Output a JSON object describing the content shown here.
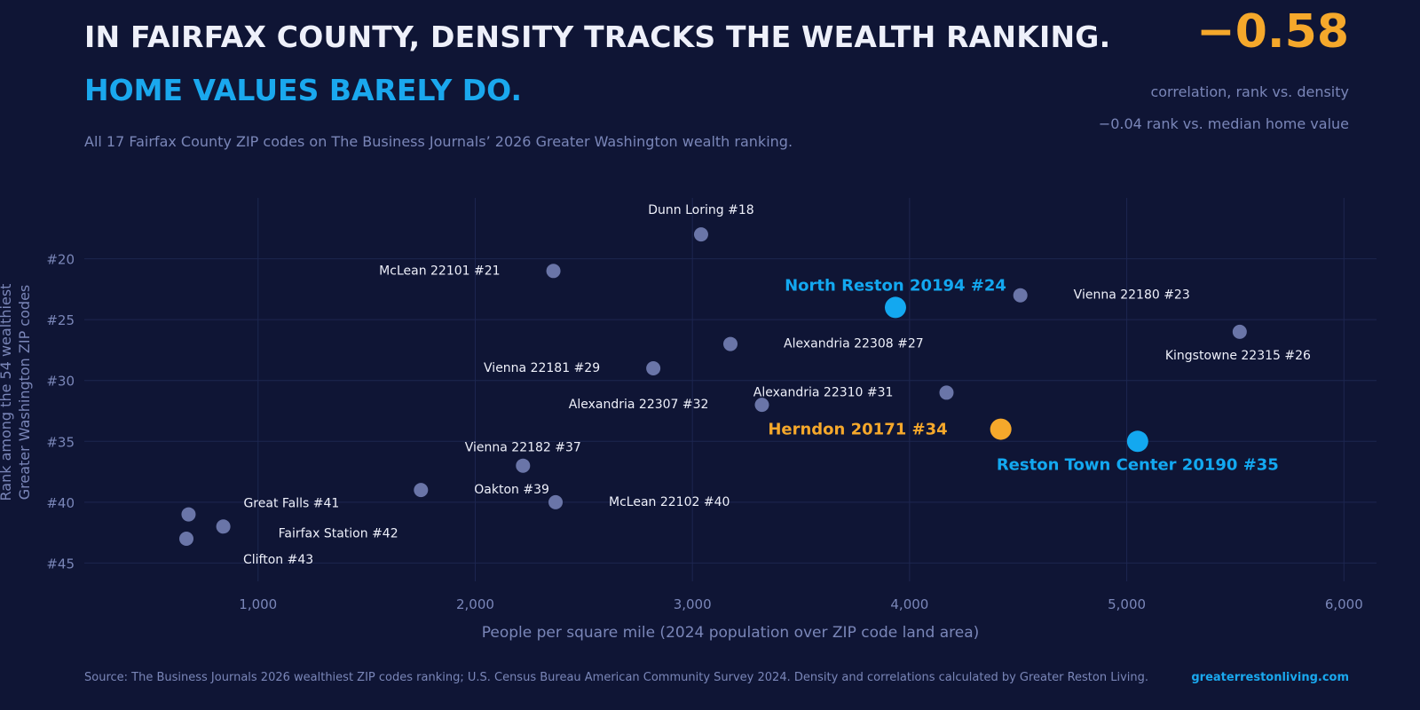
{
  "header": {
    "title_line1": "IN FAIRFAX COUNTY, DENSITY TRACKS THE WEALTH RANKING.",
    "title_line2": "HOME VALUES BARELY DO.",
    "subtitle": "All 17 Fairfax County ZIP codes on The Business Journals’ 2026 Greater Washington wealth ranking."
  },
  "stat": {
    "value": "−0.58",
    "label": "correlation, rank vs. density",
    "secondary": "−0.04  rank vs. median home value"
  },
  "chart_data": {
    "type": "scatter",
    "xlabel": "People per square mile  (2024 population over ZIP code land area)",
    "ylabel_line1": "Rank among the 54 wealthiest",
    "ylabel_line2": "Greater Washington ZIP codes",
    "xlim": [
      200,
      6150
    ],
    "ylim": [
      46.5,
      15
    ],
    "x_ticks": [
      1000,
      2000,
      3000,
      4000,
      5000,
      6000
    ],
    "x_tick_labels": [
      "1,000",
      "2,000",
      "3,000",
      "4,000",
      "5,000",
      "6,000"
    ],
    "y_ticks": [
      20,
      25,
      30,
      35,
      40,
      45
    ],
    "y_tick_labels": [
      "#20",
      "#25",
      "#30",
      "#35",
      "#40",
      "#45"
    ],
    "grid": true,
    "colors": {
      "default": "#6a75a8",
      "reston": "#13a8f0",
      "herndon": "#f5a82b",
      "label_default": "#eef0fa"
    },
    "points": [
      {
        "label": "Dunn Loring  #18",
        "x": 3040,
        "y": 18,
        "highlight": "none"
      },
      {
        "label": "McLean 22101  #21",
        "x": 2360,
        "y": 21,
        "highlight": "none"
      },
      {
        "label": "Vienna 22180  #23",
        "x": 4510,
        "y": 23,
        "highlight": "none"
      },
      {
        "label": "North Reston 20194  #24",
        "x": 3935,
        "y": 24,
        "highlight": "reston"
      },
      {
        "label": "Kingstowne 22315  #26",
        "x": 5520,
        "y": 26,
        "highlight": "none"
      },
      {
        "label": "Alexandria 22308  #27",
        "x": 3175,
        "y": 27,
        "highlight": "none"
      },
      {
        "label": "Vienna 22181  #29",
        "x": 2820,
        "y": 29,
        "highlight": "none"
      },
      {
        "label": "Alexandria 22310  #31",
        "x": 4170,
        "y": 31,
        "highlight": "none"
      },
      {
        "label": "Alexandria 22307  #32",
        "x": 3320,
        "y": 32,
        "highlight": "none"
      },
      {
        "label": "Herndon 20171  #34",
        "x": 4420,
        "y": 34,
        "highlight": "herndon"
      },
      {
        "label": "Reston Town Center 20190  #35",
        "x": 5050,
        "y": 35,
        "highlight": "reston"
      },
      {
        "label": "Vienna 22182  #37",
        "x": 2220,
        "y": 37,
        "highlight": "none"
      },
      {
        "label": "Oakton  #39",
        "x": 1750,
        "y": 39,
        "highlight": "none"
      },
      {
        "label": "McLean 22102  #40",
        "x": 2370,
        "y": 40,
        "highlight": "none"
      },
      {
        "label": "Great Falls  #41",
        "x": 680,
        "y": 41,
        "highlight": "none"
      },
      {
        "label": "Fairfax Station  #42",
        "x": 840,
        "y": 42,
        "highlight": "none"
      },
      {
        "label": "Clifton  #43",
        "x": 670,
        "y": 43,
        "highlight": "none"
      }
    ]
  },
  "footer": {
    "source": "Source: The Business Journals 2026 wealthiest ZIP codes ranking; U.S. Census Bureau American Community Survey 2024. Density and correlations calculated by Greater Reston Living.",
    "site": "greaterrestonliving.com"
  }
}
